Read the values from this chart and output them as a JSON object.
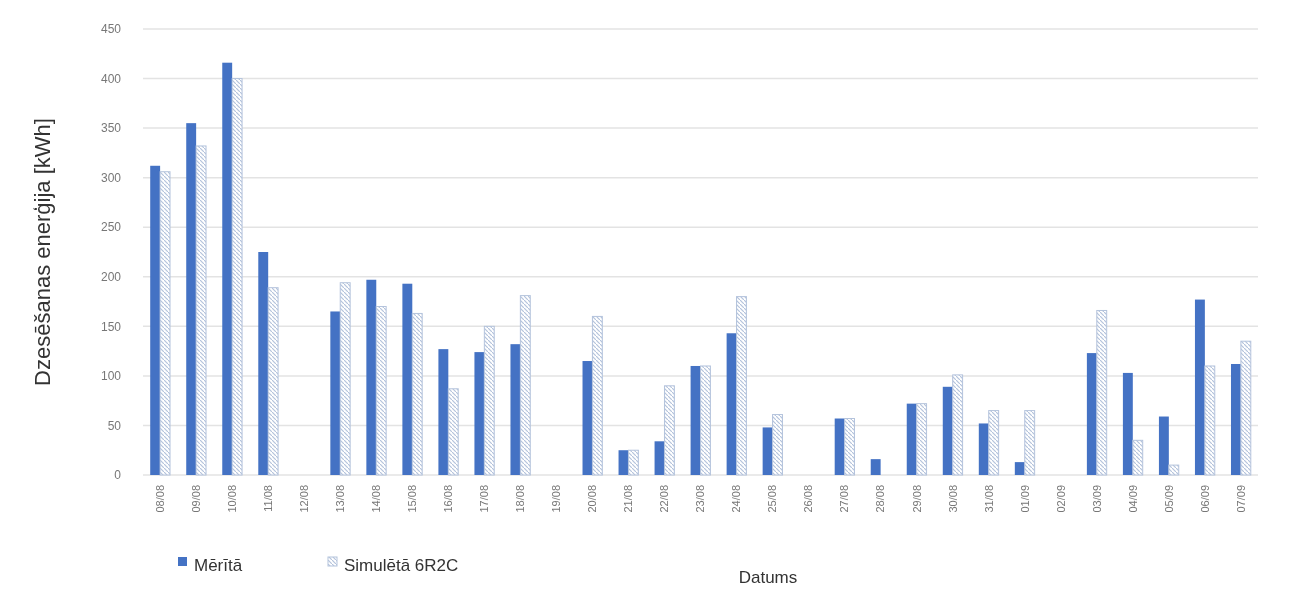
{
  "chart_data": {
    "type": "bar",
    "ylabel": "Dzesēšanas enerģija [kWh]",
    "xlabel": "Datums",
    "categories": [
      "08/08",
      "09/08",
      "10/08",
      "11/08",
      "12/08",
      "13/08",
      "14/08",
      "15/08",
      "16/08",
      "17/08",
      "18/08",
      "19/08",
      "20/08",
      "21/08",
      "22/08",
      "23/08",
      "24/08",
      "25/08",
      "26/08",
      "27/08",
      "28/08",
      "29/08",
      "30/08",
      "31/08",
      "01/09",
      "02/09",
      "03/09",
      "04/09",
      "05/09",
      "06/09",
      "07/09"
    ],
    "series": [
      {
        "name": "Mērītā",
        "color": "#4472c4",
        "values": [
          312,
          355,
          416,
          225,
          null,
          165,
          197,
          193,
          127,
          124,
          132,
          null,
          115,
          25,
          34,
          110,
          143,
          48,
          null,
          57,
          16,
          72,
          89,
          52,
          13,
          null,
          123,
          103,
          59,
          177,
          112
        ]
      },
      {
        "name": "Simulētā 6R2C",
        "color": "#b4c3dc",
        "values": [
          306,
          332,
          400,
          189,
          null,
          194,
          170,
          163,
          87,
          150,
          181,
          null,
          160,
          25,
          90,
          110,
          180,
          61,
          null,
          57,
          null,
          72,
          101,
          65,
          65,
          null,
          166,
          35,
          10,
          110,
          135
        ]
      }
    ],
    "ylim": [
      0,
      450
    ],
    "yticks": [
      0,
      50,
      100,
      150,
      200,
      250,
      300,
      350,
      400,
      450
    ],
    "grid": "y",
    "legend": "bottom left"
  }
}
